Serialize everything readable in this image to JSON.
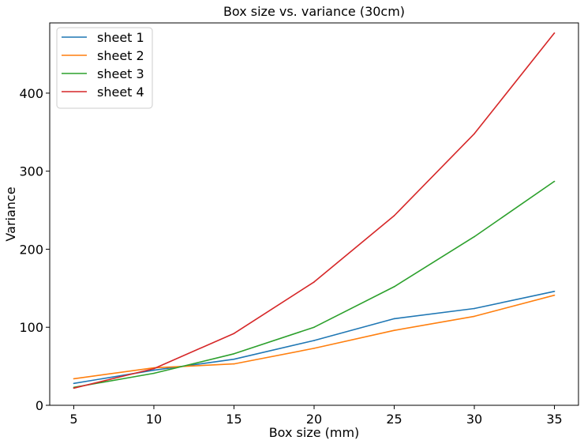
{
  "chart_data": {
    "type": "line",
    "title": "Box size vs. variance (30cm)",
    "xlabel": "Box size (mm)",
    "ylabel": "Variance",
    "x": [
      5,
      10,
      15,
      20,
      25,
      30,
      35
    ],
    "x_ticks": [
      "5",
      "10",
      "15",
      "20",
      "25",
      "30",
      "35"
    ],
    "y_ticks": [
      "0",
      "100",
      "200",
      "300",
      "400"
    ],
    "xlim": [
      3.5,
      36.5
    ],
    "ylim": [
      0,
      490
    ],
    "grid": false,
    "legend_position": "top-left",
    "series": [
      {
        "name": "sheet 1",
        "color": "#1f77b4",
        "values": [
          28,
          45,
          59,
          83,
          111,
          124,
          146
        ]
      },
      {
        "name": "sheet 2",
        "color": "#ff7f0e",
        "values": [
          34,
          48,
          53,
          73,
          96,
          114,
          141
        ]
      },
      {
        "name": "sheet 3",
        "color": "#2ca02c",
        "values": [
          23,
          41,
          66,
          100,
          152,
          216,
          287
        ]
      },
      {
        "name": "sheet 4",
        "color": "#d62728",
        "values": [
          22,
          47,
          92,
          158,
          243,
          348,
          477
        ]
      }
    ]
  }
}
